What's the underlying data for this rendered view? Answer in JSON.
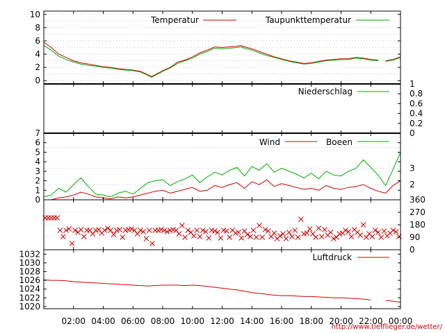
{
  "credit_link": "http://www.tiefflieger.de/wetter/",
  "colors": {
    "red": "#cc0000",
    "green": "#00aa00",
    "grid": "#999999"
  },
  "chart_data": [
    {
      "id": "temperature",
      "type": "line",
      "series": [
        {
          "name": "Temperatur",
          "color": "#cc0000",
          "x": [
            0,
            0.5,
            1,
            1.5,
            2,
            2.5,
            3,
            3.5,
            4,
            4.5,
            5,
            5.5,
            6,
            6.5,
            7,
            7.25,
            7.5,
            8,
            8.5,
            9,
            9.5,
            10,
            10.5,
            11,
            11.5,
            12,
            12.5,
            13,
            13.25,
            13.5,
            14,
            14.5,
            15,
            15.5,
            16,
            16.5,
            17,
            17.5,
            18,
            18.5,
            19,
            19.5,
            20,
            20.5,
            21,
            21.5,
            22,
            22.5,
            null,
            23,
            23.5,
            24
          ],
          "y": [
            5.8,
            5.0,
            4.0,
            3.5,
            3.0,
            2.7,
            2.5,
            2.3,
            2.1,
            2.0,
            1.8,
            1.7,
            1.6,
            1.4,
            0.9,
            0.6,
            0.9,
            1.5,
            2.0,
            2.8,
            3.1,
            3.6,
            4.2,
            4.6,
            5.1,
            5.0,
            5.1,
            5.2,
            5.3,
            5.1,
            4.8,
            4.4,
            4.0,
            3.6,
            3.3,
            3.0,
            2.8,
            2.6,
            2.7,
            2.9,
            3.1,
            3.2,
            3.3,
            3.3,
            3.5,
            3.4,
            3.2,
            3.1,
            null,
            3.0,
            3.2,
            3.6
          ]
        },
        {
          "name": "Taupunkttemperatur",
          "color": "#00aa00",
          "x": [
            0,
            0.5,
            1,
            1.5,
            2,
            2.5,
            3,
            3.5,
            4,
            4.5,
            5,
            5.5,
            6,
            6.5,
            7,
            7.25,
            7.5,
            8,
            8.5,
            9,
            9.5,
            10,
            10.5,
            11,
            11.5,
            12,
            12.5,
            13,
            13.25,
            13.5,
            14,
            14.5,
            15,
            15.5,
            16,
            16.5,
            17,
            17.5,
            18,
            18.5,
            19,
            19.5,
            20,
            20.5,
            21,
            21.5,
            22,
            22.5,
            null,
            23,
            23.5,
            24
          ],
          "y": [
            5.3,
            4.6,
            3.7,
            3.2,
            2.8,
            2.5,
            2.3,
            2.2,
            2.0,
            1.9,
            1.7,
            1.6,
            1.5,
            1.3,
            0.8,
            0.5,
            0.8,
            1.4,
            1.9,
            2.6,
            3.0,
            3.4,
            4.0,
            4.4,
            4.9,
            4.8,
            4.9,
            5.0,
            5.1,
            4.9,
            4.6,
            4.2,
            3.8,
            3.5,
            3.2,
            2.9,
            2.7,
            2.5,
            2.6,
            2.8,
            3.0,
            3.1,
            3.2,
            3.2,
            3.4,
            3.3,
            3.1,
            3.0,
            null,
            2.9,
            3.1,
            3.5
          ]
        }
      ],
      "ylim": [
        -0.5,
        10.5
      ],
      "yticks": [
        0,
        2,
        4,
        6,
        8,
        10
      ],
      "grid_values": [
        0,
        1,
        2,
        3,
        4,
        5,
        6,
        7,
        8,
        9,
        10
      ],
      "legend_placement": "top-right"
    },
    {
      "id": "precipitation",
      "type": "line",
      "series": [
        {
          "name": "Niederschlag",
          "color": "#00aa00",
          "x": [
            0,
            24
          ],
          "y": [
            0,
            0
          ]
        }
      ],
      "ylim": [
        0,
        1
      ],
      "yticks_right": [
        "0",
        "0.2",
        "0.4",
        "0.6",
        "0.8",
        "1"
      ],
      "legend_placement": "top-right"
    },
    {
      "id": "wind",
      "type": "line",
      "series": [
        {
          "name": "Wind",
          "color": "#cc0000",
          "x": [
            0,
            0.5,
            1,
            1.5,
            2,
            2.5,
            3,
            3.5,
            4,
            4.5,
            5,
            5.5,
            6,
            6.5,
            7,
            7.5,
            8,
            8.5,
            9,
            9.5,
            10,
            10.5,
            11,
            11.5,
            12,
            12.5,
            13,
            13.5,
            14,
            14.5,
            15,
            15.5,
            16,
            16.5,
            17,
            17.5,
            18,
            18.5,
            19,
            19.5,
            20,
            20.5,
            21,
            21.5,
            22,
            22.5,
            23,
            23.5,
            24
          ],
          "y": [
            0,
            0,
            0.2,
            0.3,
            0.5,
            0.8,
            0.6,
            0.3,
            0.2,
            0.1,
            0.3,
            0.2,
            0.3,
            0.5,
            0.7,
            0.9,
            1.0,
            0.7,
            0.9,
            1.1,
            1.3,
            0.9,
            1.0,
            1.5,
            1.3,
            1.6,
            1.8,
            1.2,
            1.9,
            1.6,
            2.1,
            1.4,
            1.7,
            1.5,
            1.3,
            1.1,
            1.2,
            1.0,
            1.5,
            1.2,
            1.1,
            1.3,
            1.4,
            1.6,
            1.2,
            0.9,
            0.7,
            1.5,
            2.0
          ]
        },
        {
          "name": "Boeen",
          "color": "#00aa00",
          "x": [
            0,
            0.5,
            1,
            1.5,
            2,
            2.5,
            3,
            3.5,
            4,
            4.5,
            5,
            5.5,
            6,
            6.5,
            7,
            7.5,
            8,
            8.5,
            9,
            9.5,
            10,
            10.5,
            11,
            11.5,
            12,
            12.5,
            13,
            13.5,
            14,
            14.5,
            15,
            15.5,
            16,
            16.5,
            17,
            17.5,
            18,
            18.5,
            19,
            19.5,
            20,
            20.5,
            21,
            21.5,
            22,
            22.5,
            23,
            23.5,
            24
          ],
          "y": [
            0.3,
            0.5,
            1.2,
            0.8,
            1.6,
            2.3,
            1.4,
            0.6,
            0.5,
            0.3,
            0.7,
            0.9,
            0.6,
            1.2,
            1.8,
            2.0,
            2.1,
            1.5,
            1.9,
            2.2,
            2.6,
            1.8,
            2.4,
            2.9,
            2.6,
            3.1,
            3.4,
            2.5,
            3.5,
            3.1,
            3.8,
            2.9,
            3.3,
            3.0,
            2.7,
            2.3,
            2.8,
            2.2,
            3.0,
            2.6,
            2.5,
            3.0,
            3.3,
            4.2,
            3.4,
            2.6,
            1.5,
            3.2,
            5.0
          ]
        }
      ],
      "ylim": [
        0,
        7
      ],
      "yticks": [
        0,
        1,
        2,
        3,
        4,
        5,
        6,
        7
      ],
      "right_axis_labels": [
        "2",
        "3"
      ],
      "right_axis_positions": [
        1.6,
        3.3
      ],
      "grid_values": [
        0.3,
        1.6,
        3.3,
        5.5
      ],
      "legend_placement": "top-right"
    },
    {
      "id": "wind-direction",
      "type": "scatter",
      "series": [
        {
          "name": "",
          "color": "#cc0000",
          "x": [
            0.1,
            0.3,
            0.5,
            0.7,
            0.9,
            1.1,
            1.3,
            1.5,
            1.7,
            1.9,
            2.1,
            2.3,
            2.5,
            2.7,
            2.9,
            3.1,
            3.3,
            3.5,
            3.7,
            3.9,
            4.1,
            4.3,
            4.5,
            4.7,
            4.9,
            5.1,
            5.3,
            5.5,
            5.7,
            5.9,
            6.1,
            6.3,
            6.5,
            6.7,
            6.9,
            7.1,
            7.3,
            7.5,
            7.7,
            7.9,
            8.1,
            8.3,
            8.5,
            8.7,
            8.9,
            9.1,
            9.3,
            9.5,
            9.7,
            9.9,
            10.1,
            10.3,
            10.5,
            10.7,
            10.9,
            11.1,
            11.3,
            11.5,
            11.7,
            11.9,
            12.1,
            12.3,
            12.5,
            12.7,
            12.9,
            13.1,
            13.3,
            13.5,
            13.7,
            13.9,
            14.1,
            14.3,
            14.5,
            14.7,
            14.9,
            15.1,
            15.3,
            15.5,
            15.7,
            15.9,
            16.1,
            16.3,
            16.5,
            16.7,
            16.9,
            17.1,
            17.3,
            17.5,
            17.7,
            17.9,
            18.1,
            18.3,
            18.5,
            18.7,
            18.9,
            19.1,
            19.3,
            19.5,
            19.7,
            19.9,
            20.1,
            20.3,
            20.5,
            20.7,
            20.9,
            21.1,
            21.3,
            21.5,
            21.7,
            21.9,
            22.1,
            22.3,
            22.5,
            22.7,
            22.9,
            23.1,
            23.3,
            23.5,
            23.7,
            23.9
          ],
          "y": [
            230,
            230,
            230,
            230,
            230,
            140,
            95,
            140,
            150,
            45,
            140,
            125,
            145,
            95,
            140,
            140,
            115,
            140,
            145,
            120,
            140,
            155,
            140,
            110,
            140,
            145,
            90,
            140,
            145,
            150,
            140,
            115,
            140,
            130,
            80,
            140,
            45,
            140,
            140,
            145,
            140,
            130,
            140,
            145,
            140,
            115,
            175,
            90,
            140,
            125,
            100,
            140,
            95,
            140,
            130,
            85,
            140,
            135,
            125,
            85,
            140,
            135,
            90,
            140,
            120,
            125,
            85,
            135,
            110,
            95,
            140,
            90,
            175,
            90,
            145,
            135,
            95,
            120,
            80,
            100,
            115,
            80,
            125,
            95,
            140,
            90,
            220,
            115,
            120,
            150,
            115,
            90,
            155,
            95,
            145,
            105,
            125,
            80,
            90,
            115,
            120,
            140,
            130,
            95,
            145,
            125,
            105,
            180,
            90,
            115,
            95,
            140,
            125,
            90,
            135,
            100,
            120,
            140,
            130,
            95
          ]
        }
      ],
      "ylim": [
        0,
        360
      ],
      "yticks_right": [
        "0",
        "90",
        "180",
        "270",
        "360"
      ],
      "grid_values": [
        90,
        180,
        270
      ]
    },
    {
      "id": "pressure",
      "type": "line",
      "series": [
        {
          "name": "Luftdruck",
          "color": "#cc0000",
          "x": [
            0,
            0.5,
            1,
            1.5,
            2,
            2.5,
            3,
            3.5,
            4,
            4.5,
            5,
            5.5,
            6,
            6.5,
            7,
            7.5,
            8,
            8.5,
            9,
            9.5,
            10,
            10.5,
            11,
            11.5,
            12,
            12.5,
            13,
            13.5,
            14,
            14.5,
            15,
            15.5,
            16,
            16.5,
            17,
            17.5,
            18,
            18.5,
            19,
            19.5,
            20,
            20.5,
            21,
            21.5,
            22,
            null,
            23,
            23.5,
            24
          ],
          "y": [
            1026.1,
            1026.0,
            1026.0,
            1025.9,
            1025.7,
            1025.6,
            1025.5,
            1025.4,
            1025.3,
            1025.2,
            1025.1,
            1025.0,
            1024.9,
            1024.8,
            1024.7,
            1024.8,
            1024.9,
            1024.9,
            1024.9,
            1024.8,
            1024.9,
            1024.8,
            1024.6,
            1024.4,
            1024.2,
            1024.0,
            1023.8,
            1023.5,
            1023.2,
            1023.0,
            1022.8,
            1022.6,
            1022.5,
            1022.5,
            1022.4,
            1022.3,
            1022.3,
            1022.2,
            1022.1,
            1022.0,
            1022.0,
            1021.9,
            1021.8,
            1021.7,
            1021.5,
            null,
            1021.4,
            1021.2,
            1021.0
          ]
        }
      ],
      "ylim": [
        1019.5,
        1033
      ],
      "yticks": [
        1020,
        1022,
        1024,
        1026,
        1028,
        1030,
        1032
      ],
      "legend_placement": "top-right"
    }
  ],
  "x_axis": {
    "xlim": [
      0,
      24
    ],
    "ticks": [
      2,
      4,
      6,
      8,
      10,
      12,
      14,
      16,
      18,
      20,
      22,
      24
    ],
    "tick_labels": [
      "02:00",
      "04:00",
      "06:00",
      "08:00",
      "10:00",
      "12:00",
      "14:00",
      "16:00",
      "18:00",
      "20:00",
      "22:00",
      "00:00"
    ]
  }
}
